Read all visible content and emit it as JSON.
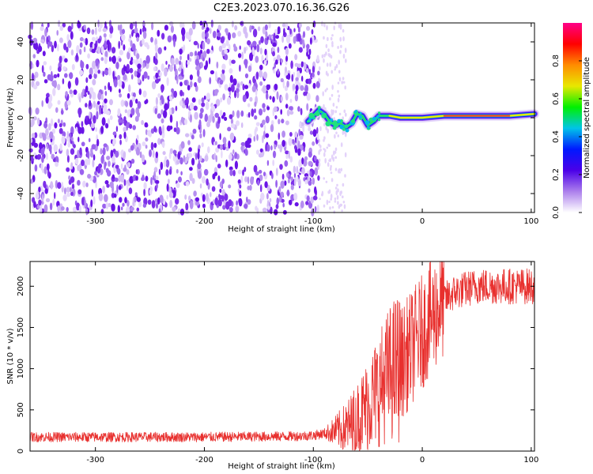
{
  "title": "C2E3.2023.070.16.36.G26",
  "chart_data": [
    {
      "type": "heatmap",
      "name": "spectrogram",
      "xlabel": "Height of straight line (km)",
      "ylabel": "Frequency (Hz)",
      "xlim": [
        -360,
        103
      ],
      "ylim": [
        -50,
        50
      ],
      "xticks": [
        -300,
        -200,
        -100,
        0,
        100
      ],
      "yticks": [
        -40,
        -20,
        0,
        20,
        40
      ],
      "noise_region_x": [
        -360,
        -95
      ],
      "sparse_region_x": [
        -95,
        -70
      ],
      "signal_trace": [
        {
          "x": -105,
          "y": -2
        },
        {
          "x": -100,
          "y": 1
        },
        {
          "x": -95,
          "y": 4
        },
        {
          "x": -90,
          "y": 2
        },
        {
          "x": -85,
          "y": -2
        },
        {
          "x": -80,
          "y": -4
        },
        {
          "x": -75,
          "y": -3
        },
        {
          "x": -70,
          "y": -5
        },
        {
          "x": -65,
          "y": -3
        },
        {
          "x": -60,
          "y": 2
        },
        {
          "x": -55,
          "y": 1
        },
        {
          "x": -50,
          "y": -4
        },
        {
          "x": -45,
          "y": -2
        },
        {
          "x": -40,
          "y": 1
        },
        {
          "x": -30,
          "y": 1
        },
        {
          "x": -20,
          "y": 0
        },
        {
          "x": -10,
          "y": 0
        },
        {
          "x": 0,
          "y": 0
        },
        {
          "x": 20,
          "y": 1
        },
        {
          "x": 50,
          "y": 1
        },
        {
          "x": 80,
          "y": 1
        },
        {
          "x": 103,
          "y": 2
        }
      ],
      "colorbar": {
        "label": "Normalized spectral amplitude",
        "range": [
          0,
          1
        ],
        "ticks": [
          0.0,
          0.2,
          0.4,
          0.6,
          0.8
        ],
        "tick_labels": [
          "0.0",
          "0.2",
          "0.4",
          "0.6",
          "0.8"
        ],
        "colors": [
          "#ffffff",
          "#ac7fec",
          "#4b00e8",
          "#0018ff",
          "#00c4e8",
          "#00f000",
          "#e8e800",
          "#ff8c00",
          "#ff0000",
          "#ff0088"
        ]
      }
    },
    {
      "type": "line",
      "name": "snr",
      "xlabel": "Height of straight line (km)",
      "ylabel": "SNR (10 * v/v)",
      "xlim": [
        -360,
        103
      ],
      "ylim": [
        0,
        2300
      ],
      "xticks": [
        -300,
        -200,
        -100,
        0,
        100
      ],
      "yticks": [
        0,
        500,
        1000,
        1500,
        2000
      ],
      "color": "#e8302e",
      "series": [
        {
          "x": [
            -360,
            -300,
            -200,
            -120,
            -100,
            -80,
            -70,
            -60,
            -50,
            -40,
            -30,
            -20,
            -10,
            0,
            10,
            20,
            30,
            50,
            80,
            103
          ],
          "values": [
            170,
            170,
            170,
            180,
            190,
            240,
            280,
            380,
            560,
            750,
            950,
            1050,
            1250,
            1450,
            1650,
            1830,
            1930,
            2000,
            2000,
            2000
          ]
        }
      ]
    }
  ]
}
